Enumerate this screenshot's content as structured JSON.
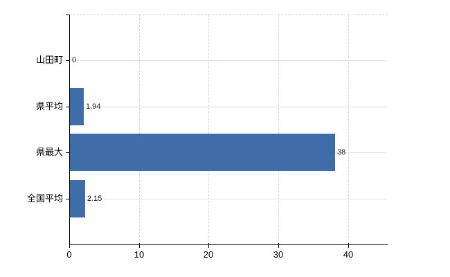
{
  "chart_data": {
    "type": "bar",
    "orientation": "horizontal",
    "title": "",
    "categories": [
      "山田町",
      "県平均",
      "県最大",
      "全国平均"
    ],
    "values": [
      0,
      1.94,
      38,
      2.15
    ],
    "value_labels": [
      "0",
      "1.94",
      "38",
      "2.15"
    ],
    "x_ticks": [
      0,
      10,
      20,
      30,
      40
    ],
    "x_tick_labels": [
      "0",
      "10",
      "20",
      "30",
      "40"
    ],
    "xlim": [
      0,
      45.5
    ],
    "ylabel": "",
    "xlabel": "",
    "legend": false,
    "grid": true,
    "bar_color": "#3e6da7",
    "vertical_grid_color": "#d9d3d9",
    "horizontal_grid_color": "#dde3d9",
    "axis_color": "#000000",
    "text_color": "#000000",
    "value_label_color": "#1a1a1a"
  }
}
